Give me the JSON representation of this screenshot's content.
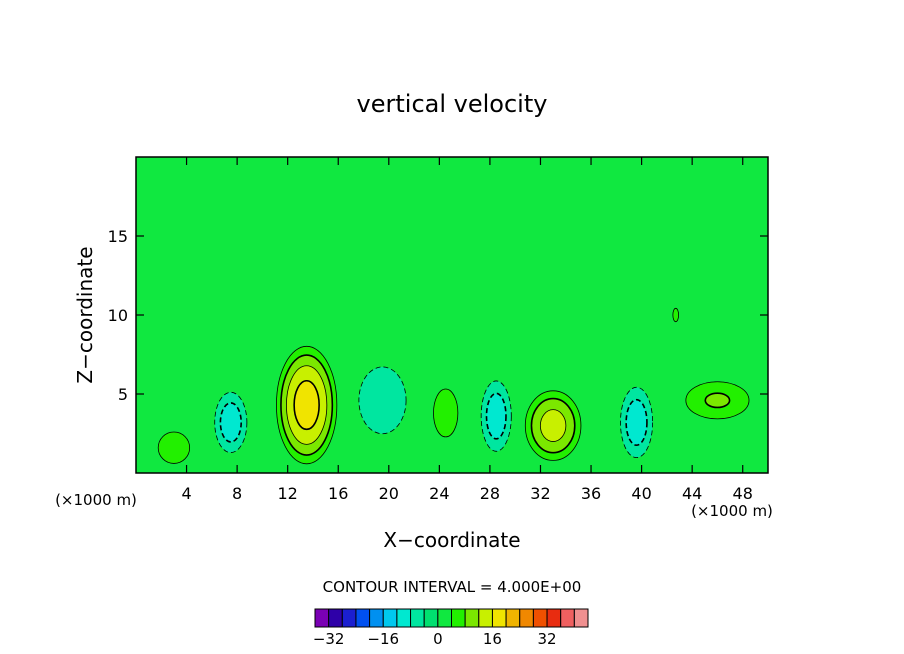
{
  "chart_data": {
    "type": "heatmap",
    "title": "vertical velocity",
    "xlabel": "X−coordinate",
    "ylabel": "Z−coordinate",
    "x_unit_left": "(×1000 m)",
    "x_unit_right": "(×1000 m)",
    "xlim": [
      0,
      50
    ],
    "ylim": [
      0,
      20
    ],
    "x_ticks": [
      4,
      8,
      12,
      16,
      20,
      24,
      28,
      32,
      36,
      40,
      44,
      48
    ],
    "y_ticks": [
      5,
      10,
      15
    ],
    "contour_interval_label": "CONTOUR INTERVAL = 4.000E+00",
    "contour_interval": 4,
    "background_level": 0,
    "cells": [
      {
        "cx": 13.5,
        "cz": 4.3,
        "rx": 2.7,
        "rz": 4.2,
        "amp": 17
      },
      {
        "cx": 7.5,
        "cz": 3.2,
        "rx": 1.6,
        "rz": 2.4,
        "amp": -10
      },
      {
        "cx": 19.5,
        "cz": 4.6,
        "rx": 3.0,
        "rz": 3.4,
        "amp": -6
      },
      {
        "cx": 24.5,
        "cz": 3.8,
        "rx": 1.4,
        "rz": 2.2,
        "amp": 7
      },
      {
        "cx": 28.5,
        "cz": 3.6,
        "rx": 1.5,
        "rz": 2.8,
        "amp": -10
      },
      {
        "cx": 33.0,
        "cz": 3.0,
        "rx": 2.6,
        "rz": 2.6,
        "amp": 13
      },
      {
        "cx": 39.6,
        "cz": 3.2,
        "rx": 1.6,
        "rz": 2.8,
        "amp": -10
      },
      {
        "cx": 46.0,
        "cz": 4.6,
        "rx": 3.4,
        "rz": 1.6,
        "amp": 8
      },
      {
        "cx": 3.0,
        "cz": 1.6,
        "rx": 2.0,
        "rz": 1.6,
        "amp": 6
      },
      {
        "cx": 42.7,
        "cz": 10.0,
        "rx": 0.8,
        "rz": 1.5,
        "amp": 4
      }
    ],
    "colorbar": {
      "colors": [
        "#7a00b4",
        "#2e00a8",
        "#1b1fd0",
        "#0050f0",
        "#0090f0",
        "#00c8ee",
        "#00e8d0",
        "#00e6a0",
        "#00e070",
        "#10e840",
        "#22f000",
        "#7be800",
        "#c8f000",
        "#f0e400",
        "#f0b400",
        "#f08800",
        "#f05000",
        "#e82c10",
        "#f06060",
        "#f09090"
      ],
      "level_min": -36,
      "level_max": 44,
      "tick_labels": [
        "−32",
        "−16",
        "0",
        "16",
        "32"
      ],
      "tick_values": [
        -32,
        -16,
        0,
        16,
        32
      ]
    }
  }
}
